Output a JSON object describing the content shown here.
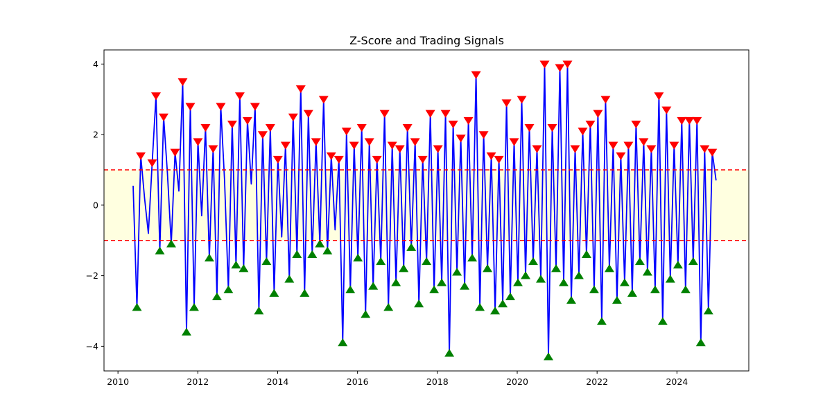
{
  "chart_data": {
    "type": "line",
    "title": "Z-Score and Trading Signals",
    "xlabel": "",
    "ylabel": "",
    "xlim": [
      2009.65,
      2025.8
    ],
    "ylim": [
      -4.7,
      4.4
    ],
    "x_ticks": [
      2010,
      2012,
      2014,
      2016,
      2018,
      2020,
      2022,
      2024
    ],
    "x_tick_labels": [
      "2010",
      "2012",
      "2014",
      "2016",
      "2018",
      "2020",
      "2022",
      "2024"
    ],
    "y_ticks": [
      -4,
      -2,
      0,
      2,
      4
    ],
    "y_tick_labels": [
      "−4",
      "−2",
      "0",
      "2",
      "4"
    ],
    "threshold_lines": [
      1,
      -1
    ],
    "grid": false,
    "legend": "none",
    "colors": {
      "zscore_line": "#0000ff",
      "threshold": "#ff0000",
      "sell_marker": "#ff0000",
      "buy_marker": "#008000",
      "band_fill": "#ffffe0"
    },
    "series": [
      {
        "x_start": 2010.38,
        "x_end": 2024.98,
        "approx_values": [
          0.55,
          -2.9,
          1.4,
          0.2,
          -0.8,
          1.2,
          3.1,
          -1.3,
          2.5,
          0.9,
          -1.1,
          1.5,
          0.4,
          3.5,
          -3.6,
          2.8,
          -2.9,
          1.8,
          -0.3,
          2.2,
          -1.5,
          1.6,
          -2.6,
          2.8,
          0.7,
          -2.4,
          2.3,
          -1.7,
          3.1,
          -1.8,
          2.4,
          0.6,
          2.8,
          -3.0,
          2.0,
          -1.6,
          2.2,
          -2.5,
          1.3,
          -0.9,
          1.7,
          -2.1,
          2.5,
          -1.4,
          3.3,
          -2.5,
          2.6,
          -1.4,
          1.8,
          -1.1,
          3.0,
          -1.3,
          1.4,
          -0.7,
          1.3,
          -3.9,
          2.1,
          -2.4,
          1.7,
          -1.5,
          2.2,
          -3.1,
          1.8,
          -2.3,
          1.3,
          -1.6,
          2.6,
          -2.9,
          1.7,
          -2.2,
          1.6,
          -1.8,
          2.2,
          -1.2,
          1.8,
          -2.8,
          1.3,
          -1.6,
          2.6,
          -2.4,
          1.6,
          -2.2,
          2.6,
          -4.2,
          2.3,
          -1.9,
          1.9,
          -2.3,
          2.4,
          -1.5,
          3.7,
          -2.9,
          2.0,
          -1.8,
          1.4,
          -3.0,
          1.3,
          -2.8,
          2.9,
          -2.6,
          1.8,
          -2.2,
          3.0,
          -2.0,
          2.2,
          -1.6,
          1.6,
          -2.1,
          4.0,
          -4.3,
          2.2,
          -1.8,
          3.9,
          -2.2,
          4.0,
          -2.7,
          1.6,
          -2.0,
          2.1,
          -1.4,
          2.3,
          -2.4,
          2.6,
          -3.3,
          3.0,
          -1.8,
          1.7,
          -2.7,
          1.4,
          -2.2,
          1.7,
          -2.5,
          2.3,
          -1.6,
          1.8,
          -1.9,
          1.6,
          -2.4,
          3.1,
          -3.3,
          2.7,
          -2.1,
          1.7,
          -1.7,
          2.4,
          -2.4,
          2.4,
          -1.6,
          2.4,
          -3.9,
          1.6,
          -3.0,
          1.5,
          0.7
        ]
      }
    ],
    "signals": {
      "sell": {
        "marker": "triangle-down",
        "condition": "z > 1"
      },
      "buy": {
        "marker": "triangle-up",
        "condition": "z < -1"
      }
    }
  }
}
